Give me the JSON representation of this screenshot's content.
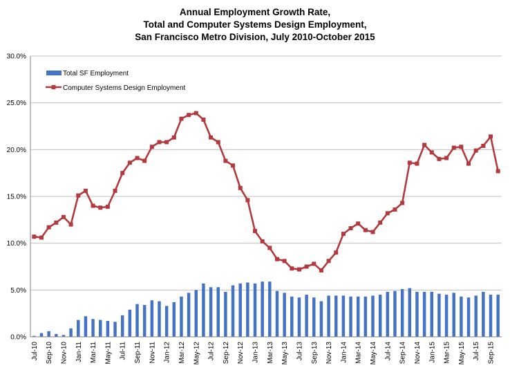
{
  "chart_data": {
    "type": "bar+line",
    "title_lines": [
      "Annual Employment Growth Rate,",
      "Total and Computer Systems Design Employment,",
      "San Francisco Metro Division, July 2010-October 2015"
    ],
    "y_ticks": [
      "0.0%",
      "5.0%",
      "10.0%",
      "15.0%",
      "20.0%",
      "25.0%",
      "30.0%"
    ],
    "ylim": [
      0,
      30
    ],
    "grid": true,
    "legend_position": "top-left",
    "x_tick_labels": [
      "Jul-10",
      "Sep-10",
      "Nov-10",
      "Jan-11",
      "Mar-11",
      "May-11",
      "Jul-11",
      "Sep-11",
      "Nov-11",
      "Jan-12",
      "Mar-12",
      "May-12",
      "Jul-12",
      "Sep-12",
      "Nov-12",
      "Jan-13",
      "Mar-13",
      "May-13",
      "Jul-13",
      "Sep-13",
      "Nov-13",
      "Jan-14",
      "Mar-14",
      "May-14",
      "Jul-14",
      "Sep-14",
      "Nov-14",
      "Jan-15",
      "Mar-15",
      "May-15",
      "Jul-15",
      "Sep-15"
    ],
    "series": [
      {
        "name": "Total SF Employment",
        "kind": "bar",
        "color": "#4472C4",
        "values": [
          0.1,
          0.4,
          0.6,
          0.3,
          0.2,
          0.9,
          1.8,
          2.2,
          1.9,
          1.8,
          1.7,
          1.6,
          2.3,
          2.9,
          3.5,
          3.4,
          3.9,
          3.8,
          3.3,
          3.7,
          4.3,
          4.7,
          5.0,
          5.7,
          5.3,
          5.3,
          4.8,
          5.5,
          5.7,
          5.8,
          5.7,
          5.9,
          5.9,
          4.9,
          4.7,
          4.3,
          4.2,
          4.5,
          4.2,
          3.8,
          4.4,
          4.4,
          4.4,
          4.3,
          4.3,
          4.3,
          4.4,
          4.5,
          4.8,
          4.9,
          5.1,
          5.2,
          4.8,
          4.8,
          4.8,
          4.6,
          4.5,
          4.7,
          4.3,
          4.2,
          4.4,
          4.8,
          4.5,
          4.5
        ]
      },
      {
        "name": "Computer Systems Design Employment",
        "kind": "line",
        "color": "#B3393E",
        "values": [
          10.7,
          10.6,
          11.7,
          12.2,
          12.8,
          12.0,
          15.1,
          15.6,
          14.0,
          13.8,
          13.9,
          15.6,
          17.5,
          18.6,
          19.1,
          18.8,
          20.3,
          20.8,
          20.8,
          21.3,
          23.3,
          23.7,
          23.9,
          23.2,
          21.3,
          20.8,
          18.8,
          18.3,
          15.9,
          14.6,
          11.3,
          10.2,
          9.5,
          8.3,
          8.1,
          7.3,
          7.2,
          7.5,
          7.8,
          7.1,
          8.1,
          9.0,
          11.0,
          11.6,
          12.1,
          11.4,
          11.2,
          12.2,
          13.2,
          13.6,
          14.3,
          18.6,
          18.5,
          20.5,
          19.7,
          19.0,
          19.1,
          20.2,
          20.3,
          18.5,
          19.9,
          20.4,
          21.4,
          17.7
        ]
      }
    ]
  }
}
